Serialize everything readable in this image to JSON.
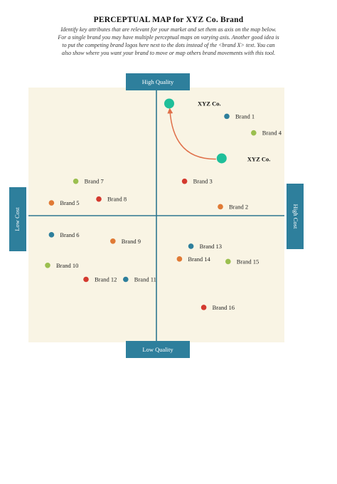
{
  "page": {
    "title": "PERCEPTUAL MAP for XYZ Co. Brand",
    "intro_lines": [
      "Identify key attributes that are relevant for your market and set them as axis on the map below.",
      "For a single brand you may have multiple perceptual maps on varying axis. Another good idea is",
      "to put the competing brand logos here next to the dots instead of the <brand X> text. You can",
      "also show where you want your brand to move or map others brand movements with this tool."
    ]
  },
  "axes": {
    "top": "High Quality",
    "bottom": "Low Quality",
    "left": "Low Cost",
    "right": "High Cost"
  },
  "colors": {
    "background": "#f9f4e4",
    "axis": "#2e7f9c",
    "teal": "#1fbf9a",
    "arrow": "#e0704a",
    "blue": "#2e7f9c",
    "green": "#9bbf4f",
    "orange": "#e07a35",
    "red": "#d43a2f"
  },
  "chart_data": {
    "type": "scatter",
    "xlabel": "Low Cost / High Cost",
    "ylabel": "Low Quality / High Quality",
    "xlim": [
      -10,
      10
    ],
    "ylim": [
      -10,
      10
    ],
    "grid": false,
    "points": [
      {
        "label": "Brand 1",
        "x": 5.5,
        "y": 7.8,
        "color": "blue"
      },
      {
        "label": "Brand 4",
        "x": 7.6,
        "y": 6.5,
        "color": "green"
      },
      {
        "label": "Brand 3",
        "x": 2.2,
        "y": 2.7,
        "color": "red"
      },
      {
        "label": "Brand 2",
        "x": 5.0,
        "y": 0.7,
        "color": "orange"
      },
      {
        "label": "Brand 7",
        "x": -6.3,
        "y": 2.7,
        "color": "green"
      },
      {
        "label": "Brand 8",
        "x": -4.5,
        "y": 1.3,
        "color": "red"
      },
      {
        "label": "Brand 5",
        "x": -8.2,
        "y": 1.0,
        "color": "orange"
      },
      {
        "label": "Brand 6",
        "x": -8.2,
        "y": -1.5,
        "color": "blue"
      },
      {
        "label": "Brand 9",
        "x": -3.4,
        "y": -2.0,
        "color": "orange"
      },
      {
        "label": "Brand 13",
        "x": 2.7,
        "y": -2.4,
        "color": "blue"
      },
      {
        "label": "Brand 14",
        "x": 1.8,
        "y": -3.4,
        "color": "orange"
      },
      {
        "label": "Brand 15",
        "x": 5.6,
        "y": -3.6,
        "color": "green"
      },
      {
        "label": "Brand 10",
        "x": -8.5,
        "y": -3.9,
        "color": "green"
      },
      {
        "label": "Brand 11",
        "x": -2.4,
        "y": -5.0,
        "color": "blue"
      },
      {
        "label": "Brand 12",
        "x": -5.5,
        "y": -5.0,
        "color": "red"
      },
      {
        "label": "Brand 16",
        "x": 3.7,
        "y": -7.2,
        "color": "red"
      }
    ],
    "highlight": {
      "label": "XYZ Co.",
      "from": {
        "x": 5.1,
        "y": 4.5
      },
      "to": {
        "x": 1.0,
        "y": 8.8
      },
      "color": "teal"
    }
  }
}
